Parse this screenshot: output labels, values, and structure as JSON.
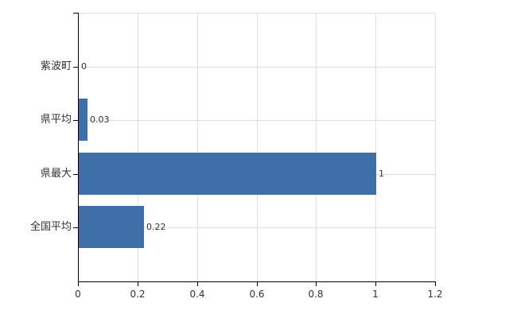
{
  "chart_data": {
    "type": "bar",
    "orientation": "horizontal",
    "title": "",
    "xlabel": "",
    "ylabel": "",
    "categories": [
      "紫波町",
      "県平均",
      "県最大",
      "全国平均"
    ],
    "values": [
      0,
      0.03,
      1,
      0.22
    ],
    "value_labels": [
      "0",
      "0.03",
      "1",
      "0.22"
    ],
    "x_ticks": [
      0,
      0.2,
      0.4,
      0.6,
      0.8,
      1,
      1.2
    ],
    "x_tick_labels": [
      "0",
      "0.2",
      "0.4",
      "0.6",
      "0.8",
      "1",
      "1.2"
    ],
    "xlim": [
      0,
      1.2
    ],
    "grid": true,
    "legend": false,
    "bar_color": "#3e6fa9",
    "grid_color": "#dcdfdc",
    "axis_color": "#000000",
    "text_color": "#333333",
    "background_color": "#ffffff"
  }
}
